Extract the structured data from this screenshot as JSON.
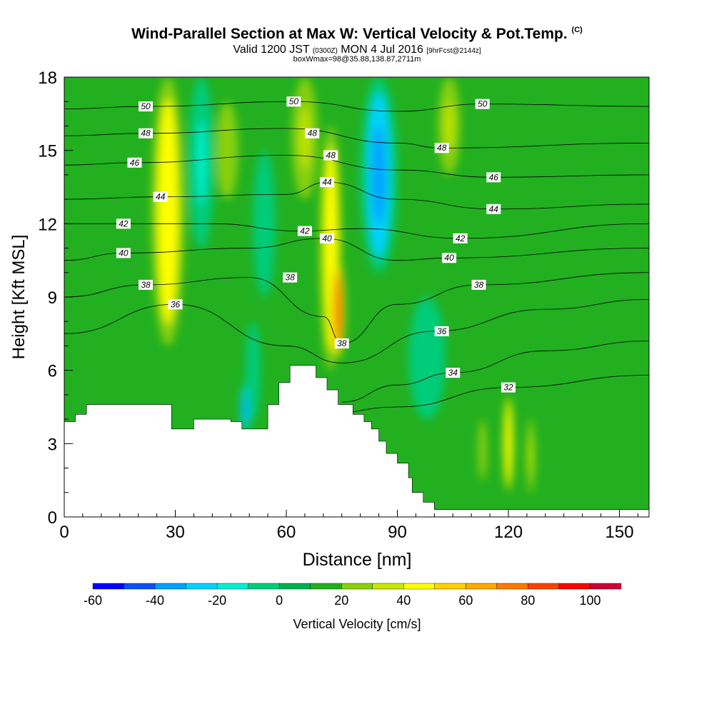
{
  "title": {
    "main": "Wind-Parallel Section at Max W: Vertical Velocity & Pot.Temp.",
    "copyright": "(C)",
    "valid_prefix": "Valid 1200 JST",
    "valid_utc": "(0300Z)",
    "valid_date": "MON 4 Jul 2016",
    "forecast": "[9hrFcst@2144z]",
    "box_info": "boxWmax=98@35.88,138.87,2711m"
  },
  "chart_data": {
    "type": "heatmap",
    "xlabel": "Distance [nm]",
    "ylabel": "Height [Kft MSL]",
    "xlim": [
      0,
      158
    ],
    "ylim": [
      0,
      18
    ],
    "x_ticks": [
      0,
      30,
      60,
      90,
      120,
      150
    ],
    "y_ticks": [
      0,
      3,
      6,
      9,
      12,
      15,
      18
    ],
    "colorbar": {
      "label": "Vertical Velocity [cm/s]",
      "levels": [
        -60,
        -50,
        -40,
        -30,
        -20,
        -10,
        0,
        10,
        20,
        30,
        40,
        50,
        60,
        70,
        80,
        90,
        100,
        110
      ],
      "tick_labels": [
        "-60",
        "-40",
        "-20",
        "0",
        "20",
        "40",
        "60",
        "80",
        "100"
      ],
      "colors": [
        "#0000ff",
        "#0a50ff",
        "#00a0ff",
        "#00d2ff",
        "#00f0d0",
        "#00cc7a",
        "#00b050",
        "#22b020",
        "#88d010",
        "#c8e600",
        "#ffff00",
        "#ffd200",
        "#ffaa00",
        "#ff7800",
        "#ff4000",
        "#ff0000",
        "#cc0033",
        "#990066",
        "#660099"
      ]
    },
    "velocity_features": [
      {
        "x": 28,
        "top": 18,
        "bottom": 7,
        "w": 4.5,
        "value": 35
      },
      {
        "x": 37,
        "top": 18,
        "bottom": 11,
        "w": 3.5,
        "value": -25
      },
      {
        "x": 44,
        "top": 17,
        "bottom": 13,
        "w": 3,
        "value": 15
      },
      {
        "x": 54,
        "top": 15,
        "bottom": 9,
        "w": 3,
        "value": -15
      },
      {
        "x": 65,
        "top": 18,
        "bottom": 13,
        "w": 3.5,
        "value": 25
      },
      {
        "x": 72,
        "top": 16,
        "bottom": 6,
        "w": 3,
        "value": 35
      },
      {
        "x": 74,
        "top": 10.5,
        "bottom": 6.5,
        "w": 1.8,
        "value": 85
      },
      {
        "x": 85,
        "top": 18,
        "bottom": 10,
        "w": 5,
        "value": -45
      },
      {
        "x": 104,
        "top": 18,
        "bottom": 14,
        "w": 3,
        "value": 25
      },
      {
        "x": 120,
        "top": 5,
        "bottom": 1,
        "w": 1.5,
        "value": 35
      },
      {
        "x": 126,
        "top": 4,
        "bottom": 1,
        "w": 1.2,
        "value": 25
      },
      {
        "x": 113,
        "top": 4,
        "bottom": 1.5,
        "w": 1.2,
        "value": 15
      },
      {
        "x": 49,
        "top": 5.5,
        "bottom": 3.5,
        "w": 1.5,
        "value": -45
      },
      {
        "x": 51,
        "top": 8,
        "bottom": 4,
        "w": 2,
        "value": -20
      },
      {
        "x": 98,
        "top": 9,
        "bottom": 4,
        "w": 5,
        "value": -15
      }
    ],
    "theta_contours": [
      {
        "label": "32",
        "label_at": {
          "x": 120,
          "y": 5.3
        },
        "y": [
          {
            "x": 70,
            "h": 4.2
          },
          {
            "x": 90,
            "h": 4.5
          },
          {
            "x": 120,
            "h": 5.3
          },
          {
            "x": 158,
            "h": 5.8
          }
        ]
      },
      {
        "label": "34",
        "label_at": {
          "x": 105,
          "y": 5.9
        },
        "y": [
          {
            "x": 75,
            "h": 4.7
          },
          {
            "x": 90,
            "h": 5.4
          },
          {
            "x": 105,
            "h": 5.9
          },
          {
            "x": 130,
            "h": 6.8
          },
          {
            "x": 158,
            "h": 7.2
          }
        ]
      },
      {
        "label": "36",
        "label_at": {
          "x": 30,
          "y": 8.7
        },
        "y": [
          {
            "x": 0,
            "h": 7.5
          },
          {
            "x": 30,
            "h": 8.7
          },
          {
            "x": 60,
            "h": 7.0
          },
          {
            "x": 75,
            "h": 6.3
          },
          {
            "x": 100,
            "h": 7.6
          },
          {
            "x": 130,
            "h": 8.5
          },
          {
            "x": 158,
            "h": 8.9
          }
        ]
      },
      {
        "label": "36",
        "label_at": {
          "x": 102,
          "y": 7.6
        },
        "y": []
      },
      {
        "label": "38",
        "label_at": {
          "x": 22,
          "y": 9.5
        },
        "y": [
          {
            "x": 0,
            "h": 9.0
          },
          {
            "x": 22,
            "h": 9.5
          },
          {
            "x": 50,
            "h": 9.8
          },
          {
            "x": 70,
            "h": 8.2
          },
          {
            "x": 75,
            "h": 7.1
          },
          {
            "x": 90,
            "h": 8.7
          },
          {
            "x": 112,
            "h": 9.5
          },
          {
            "x": 158,
            "h": 10.0
          }
        ]
      },
      {
        "label": "38",
        "label_at": {
          "x": 61,
          "y": 9.8
        },
        "y": []
      },
      {
        "label": "38",
        "label_at": {
          "x": 75,
          "y": 7.1
        },
        "y": []
      },
      {
        "label": "38",
        "label_at": {
          "x": 112,
          "y": 9.5
        },
        "y": []
      },
      {
        "label": "40",
        "label_at": {
          "x": 16,
          "y": 10.8
        },
        "y": [
          {
            "x": 0,
            "h": 10.5
          },
          {
            "x": 16,
            "h": 10.8
          },
          {
            "x": 50,
            "h": 11.0
          },
          {
            "x": 70,
            "h": 11.4
          },
          {
            "x": 90,
            "h": 10.5
          },
          {
            "x": 104,
            "h": 10.6
          },
          {
            "x": 158,
            "h": 11.0
          }
        ]
      },
      {
        "label": "40",
        "label_at": {
          "x": 71,
          "y": 11.4
        },
        "y": []
      },
      {
        "label": "40",
        "label_at": {
          "x": 104,
          "y": 10.6
        },
        "y": []
      },
      {
        "label": "42",
        "label_at": {
          "x": 16,
          "y": 12.0
        },
        "y": [
          {
            "x": 0,
            "h": 12.0
          },
          {
            "x": 40,
            "h": 12.0
          },
          {
            "x": 64,
            "h": 11.7
          },
          {
            "x": 80,
            "h": 11.8
          },
          {
            "x": 107,
            "h": 11.4
          },
          {
            "x": 158,
            "h": 12.0
          }
        ]
      },
      {
        "label": "42",
        "label_at": {
          "x": 65,
          "y": 11.7
        },
        "y": []
      },
      {
        "label": "42",
        "label_at": {
          "x": 107,
          "y": 11.4
        },
        "y": []
      },
      {
        "label": "44",
        "label_at": {
          "x": 26,
          "y": 13.1
        },
        "y": [
          {
            "x": 0,
            "h": 13.0
          },
          {
            "x": 26,
            "h": 13.1
          },
          {
            "x": 60,
            "h": 13.2
          },
          {
            "x": 71,
            "h": 13.7
          },
          {
            "x": 90,
            "h": 13.0
          },
          {
            "x": 116,
            "h": 12.6
          },
          {
            "x": 158,
            "h": 12.8
          }
        ]
      },
      {
        "label": "44",
        "label_at": {
          "x": 71,
          "y": 13.7
        },
        "y": []
      },
      {
        "label": "44",
        "label_at": {
          "x": 116,
          "y": 12.6
        },
        "y": []
      },
      {
        "label": "46",
        "label_at": {
          "x": 19,
          "y": 14.5
        },
        "y": [
          {
            "x": 0,
            "h": 14.4
          },
          {
            "x": 19,
            "h": 14.5
          },
          {
            "x": 60,
            "h": 14.8
          },
          {
            "x": 90,
            "h": 14.2
          },
          {
            "x": 116,
            "h": 13.9
          },
          {
            "x": 158,
            "h": 14.0
          }
        ]
      },
      {
        "label": "46",
        "label_at": {
          "x": 116,
          "y": 13.9
        },
        "y": []
      },
      {
        "label": "48",
        "label_at": {
          "x": 22,
          "y": 15.7
        },
        "y": [
          {
            "x": 0,
            "h": 15.6
          },
          {
            "x": 22,
            "h": 15.7
          },
          {
            "x": 60,
            "h": 15.9
          },
          {
            "x": 90,
            "h": 15.3
          },
          {
            "x": 102,
            "h": 15.1
          },
          {
            "x": 158,
            "h": 15.3
          }
        ]
      },
      {
        "label": "48",
        "label_at": {
          "x": 67,
          "y": 15.7
        },
        "y": []
      },
      {
        "label": "48",
        "label_at": {
          "x": 72,
          "y": 14.8
        },
        "y": []
      },
      {
        "label": "48",
        "label_at": {
          "x": 102,
          "y": 15.1
        },
        "y": []
      },
      {
        "label": "50",
        "label_at": {
          "x": 22,
          "y": 16.8
        },
        "y": [
          {
            "x": 0,
            "h": 16.7
          },
          {
            "x": 22,
            "h": 16.8
          },
          {
            "x": 62,
            "h": 17.0
          },
          {
            "x": 90,
            "h": 16.6
          },
          {
            "x": 113,
            "h": 16.9
          },
          {
            "x": 158,
            "h": 16.8
          }
        ]
      },
      {
        "label": "50",
        "label_at": {
          "x": 62,
          "y": 17.0
        },
        "y": []
      },
      {
        "label": "50",
        "label_at": {
          "x": 113,
          "y": 16.9
        },
        "y": []
      }
    ],
    "terrain": [
      {
        "x": 0,
        "h": 3.9
      },
      {
        "x": 3,
        "h": 3.9
      },
      {
        "x": 3,
        "h": 4.2
      },
      {
        "x": 6,
        "h": 4.2
      },
      {
        "x": 6,
        "h": 4.6
      },
      {
        "x": 29,
        "h": 4.6
      },
      {
        "x": 29,
        "h": 3.6
      },
      {
        "x": 35,
        "h": 3.6
      },
      {
        "x": 35,
        "h": 4.0
      },
      {
        "x": 45,
        "h": 4.0
      },
      {
        "x": 45,
        "h": 3.9
      },
      {
        "x": 48,
        "h": 3.9
      },
      {
        "x": 48,
        "h": 3.6
      },
      {
        "x": 55,
        "h": 3.6
      },
      {
        "x": 55,
        "h": 4.6
      },
      {
        "x": 58,
        "h": 4.6
      },
      {
        "x": 58,
        "h": 5.5
      },
      {
        "x": 61,
        "h": 5.5
      },
      {
        "x": 61,
        "h": 6.2
      },
      {
        "x": 68,
        "h": 6.2
      },
      {
        "x": 68,
        "h": 5.7
      },
      {
        "x": 71,
        "h": 5.7
      },
      {
        "x": 71,
        "h": 5.2
      },
      {
        "x": 74,
        "h": 5.2
      },
      {
        "x": 74,
        "h": 4.6
      },
      {
        "x": 78,
        "h": 4.6
      },
      {
        "x": 78,
        "h": 4.2
      },
      {
        "x": 81,
        "h": 4.2
      },
      {
        "x": 81,
        "h": 3.9
      },
      {
        "x": 83,
        "h": 3.9
      },
      {
        "x": 83,
        "h": 3.6
      },
      {
        "x": 85,
        "h": 3.6
      },
      {
        "x": 85,
        "h": 3.1
      },
      {
        "x": 87,
        "h": 3.1
      },
      {
        "x": 87,
        "h": 2.6
      },
      {
        "x": 90,
        "h": 2.6
      },
      {
        "x": 90,
        "h": 2.2
      },
      {
        "x": 93,
        "h": 2.2
      },
      {
        "x": 93,
        "h": 1.6
      },
      {
        "x": 94,
        "h": 1.6
      },
      {
        "x": 94,
        "h": 1.0
      },
      {
        "x": 97,
        "h": 1.0
      },
      {
        "x": 97,
        "h": 0.6
      },
      {
        "x": 100,
        "h": 0.6
      },
      {
        "x": 100,
        "h": 0.3
      },
      {
        "x": 158,
        "h": 0.3
      }
    ]
  }
}
